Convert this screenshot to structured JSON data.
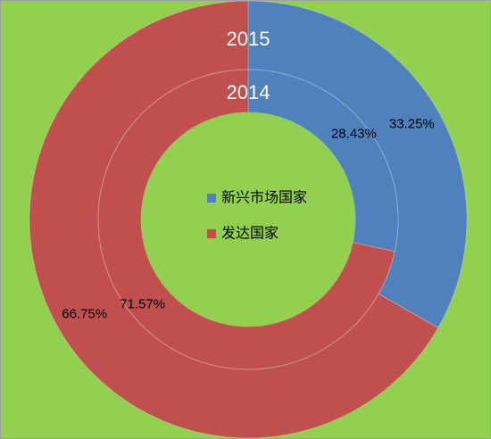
{
  "chart_data": {
    "type": "donut",
    "categories": [
      "新兴市场国家",
      "发达国家"
    ],
    "colors": [
      "#4f81bd",
      "#c0504d"
    ],
    "rings": [
      {
        "name": "2015",
        "values": [
          33.25,
          66.75
        ],
        "value_labels": [
          "33.25%",
          "66.75%"
        ]
      },
      {
        "name": "2014",
        "values": [
          28.43,
          71.57
        ],
        "value_labels": [
          "28.43%",
          "71.57%"
        ]
      }
    ]
  }
}
